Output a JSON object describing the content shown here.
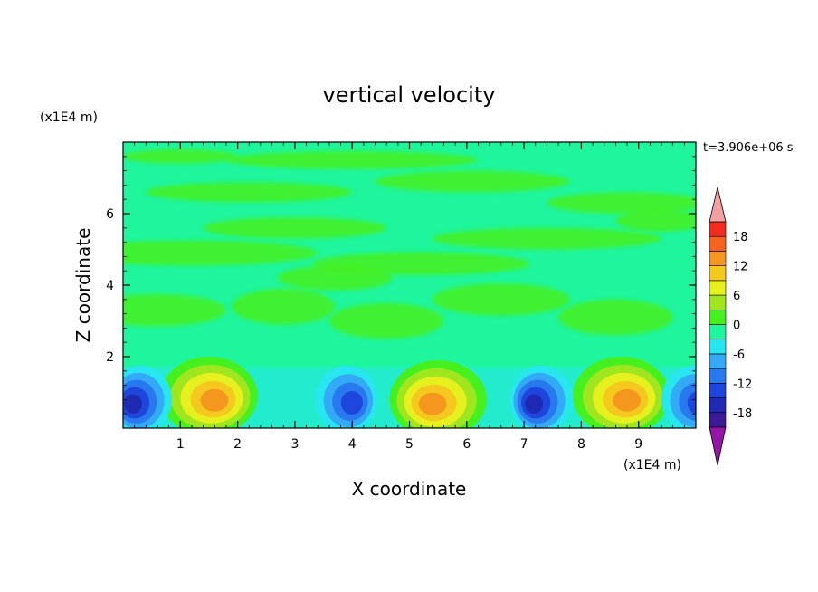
{
  "chart_data": {
    "type": "heatmap",
    "title": "vertical velocity",
    "xlabel": "X coordinate",
    "ylabel": "Z coordinate",
    "x_unit": "(x1E4 m)",
    "y_unit": "(x1E4 m)",
    "time_label": "t=3.906e+06 s",
    "xlim": [
      0,
      10
    ],
    "ylim": [
      0,
      8
    ],
    "x_ticks": [
      "1",
      "2",
      "3",
      "4",
      "5",
      "6",
      "7",
      "8",
      "9"
    ],
    "y_ticks": [
      "2",
      "4",
      "6"
    ],
    "colorbar": {
      "levels": [
        -21,
        -18,
        -15,
        -12,
        -9,
        -6,
        -3,
        0,
        3,
        6,
        9,
        12,
        15,
        18,
        21
      ],
      "tick_labels": [
        "18",
        "12",
        "6",
        "0",
        "-6",
        "-12",
        "-18"
      ],
      "colors": [
        "#a52aaa",
        "#3c1c96",
        "#1e2ab4",
        "#1e46dc",
        "#2878f0",
        "#32aaf5",
        "#28e6f0",
        "#1ef59c",
        "#46f01e",
        "#a0e61e",
        "#e6f01e",
        "#f5c81e",
        "#f5961e",
        "#f5641e",
        "#f02d1e",
        "#d21414"
      ],
      "extend_high_color": "#f5a0a0",
      "extend_low_color": "#9614aa"
    },
    "features": [
      {
        "kind": "updraft",
        "x": 1.5,
        "z": 0.9,
        "value": 13
      },
      {
        "kind": "updraft",
        "x": 5.5,
        "z": 0.8,
        "value": 12
      },
      {
        "kind": "updraft",
        "x": 8.7,
        "z": 0.9,
        "value": 13
      },
      {
        "kind": "downdraft",
        "x": 0.3,
        "z": 0.8,
        "value": -13
      },
      {
        "kind": "downdraft",
        "x": 3.9,
        "z": 0.8,
        "value": -11
      },
      {
        "kind": "downdraft",
        "x": 7.3,
        "z": 0.8,
        "value": -14
      },
      {
        "kind": "downdraft",
        "x": 9.95,
        "z": 0.8,
        "value": -10
      }
    ]
  }
}
